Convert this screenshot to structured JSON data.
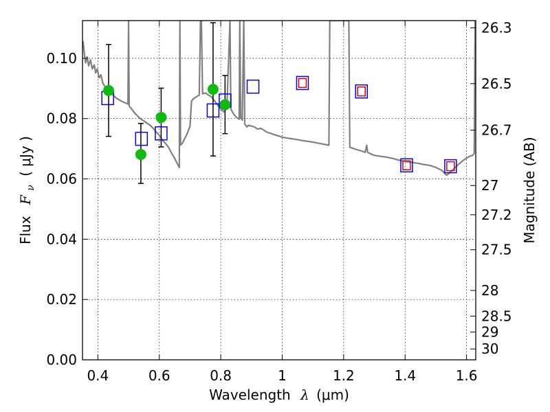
{
  "chart_data": {
    "type": "scatter",
    "xlabel": "Wavelength",
    "xlabel_symbol": "λ",
    "xlabel_unit": "(μm)",
    "ylabel": "Flux",
    "ylabel_symbol": "F",
    "ylabel_subscript": "ν",
    "ylabel_unit": "(  μJy )",
    "y2label": "Magnitude (AB)",
    "xlim": [
      0.35,
      1.63
    ],
    "ylim": [
      0.0,
      0.1125
    ],
    "grid": true,
    "xticks": [
      0.4,
      0.6,
      0.8,
      1.0,
      1.2,
      1.4,
      1.6
    ],
    "xtick_labels": [
      "0.4",
      "0.6",
      "0.8",
      "1",
      "1.2",
      "1.4",
      "1.6"
    ],
    "yticks": [
      0.0,
      0.02,
      0.04,
      0.06,
      0.08,
      0.1
    ],
    "ytick_labels": [
      "0.00",
      "0.02",
      "0.04",
      "0.06",
      "0.08",
      "0.10"
    ],
    "magnitude_ticks": [
      {
        "label": "26.3",
        "flux": 0.1101
      },
      {
        "label": "26.5",
        "flux": 0.0916
      },
      {
        "label": "26.7",
        "flux": 0.0762
      },
      {
        "label": "27",
        "flux": 0.0578
      },
      {
        "label": "27.2",
        "flux": 0.0481
      },
      {
        "label": "27.5",
        "flux": 0.0365
      },
      {
        "label": "28",
        "flux": 0.023
      },
      {
        "label": "28.5",
        "flux": 0.0145
      },
      {
        "label": "29",
        "flux": 0.0092
      },
      {
        "label": "30",
        "flux": 0.0036
      }
    ],
    "series": [
      {
        "kind": "line",
        "color": "#808080",
        "points": [
          [
            0.35,
            0.1035
          ],
          [
            0.352,
            0.1055
          ],
          [
            0.356,
            0.1015
          ],
          [
            0.36,
            0.0985
          ],
          [
            0.365,
            0.1005
          ],
          [
            0.37,
            0.0975
          ],
          [
            0.376,
            0.0995
          ],
          [
            0.382,
            0.0965
          ],
          [
            0.388,
            0.0978
          ],
          [
            0.393,
            0.0952
          ],
          [
            0.398,
            0.0965
          ],
          [
            0.404,
            0.0935
          ],
          [
            0.41,
            0.0945
          ],
          [
            0.416,
            0.0918
          ],
          [
            0.422,
            0.0908
          ],
          [
            0.43,
            0.0895
          ],
          [
            0.44,
            0.0888
          ],
          [
            0.45,
            0.0878
          ],
          [
            0.46,
            0.0868
          ],
          [
            0.47,
            0.0862
          ],
          [
            0.48,
            0.0856
          ],
          [
            0.49,
            0.0852
          ],
          [
            0.498,
            0.0848
          ],
          [
            0.5,
            0.1125
          ],
          [
            0.502,
            0.0842
          ],
          [
            0.51,
            0.0832
          ],
          [
            0.52,
            0.0818
          ],
          [
            0.53,
            0.0808
          ],
          [
            0.54,
            0.0798
          ],
          [
            0.55,
            0.0792
          ],
          [
            0.56,
            0.0785
          ],
          [
            0.57,
            0.0778
          ],
          [
            0.58,
            0.0768
          ],
          [
            0.59,
            0.0755
          ],
          [
            0.6,
            0.0745
          ],
          [
            0.61,
            0.0728
          ],
          [
            0.62,
            0.0718
          ],
          [
            0.63,
            0.0705
          ],
          [
            0.64,
            0.0685
          ],
          [
            0.65,
            0.0668
          ],
          [
            0.66,
            0.0648
          ],
          [
            0.665,
            0.0638
          ],
          [
            0.667,
            0.1125
          ],
          [
            0.669,
            0.0712
          ],
          [
            0.675,
            0.0718
          ],
          [
            0.69,
            0.0748
          ],
          [
            0.7,
            0.0775
          ],
          [
            0.705,
            0.0858
          ],
          [
            0.71,
            0.0865
          ],
          [
            0.72,
            0.0872
          ],
          [
            0.73,
            0.0878
          ],
          [
            0.734,
            0.1125
          ],
          [
            0.737,
            0.1125
          ],
          [
            0.741,
            0.0882
          ],
          [
            0.75,
            0.0885
          ],
          [
            0.76,
            0.0878
          ],
          [
            0.77,
            0.0872
          ],
          [
            0.78,
            0.0858
          ],
          [
            0.79,
            0.0845
          ],
          [
            0.8,
            0.0832
          ],
          [
            0.81,
            0.0822
          ],
          [
            0.82,
            0.0835
          ],
          [
            0.83,
            0.1125
          ],
          [
            0.833,
            0.0832
          ],
          [
            0.84,
            0.0818
          ],
          [
            0.85,
            0.0805
          ],
          [
            0.86,
            0.0798
          ],
          [
            0.862,
            0.1125
          ],
          [
            0.865,
            0.0802
          ],
          [
            0.87,
            0.0795
          ],
          [
            0.875,
            0.1125
          ],
          [
            0.878,
            0.0782
          ],
          [
            0.885,
            0.0772
          ],
          [
            0.89,
            0.0778
          ],
          [
            0.9,
            0.0775
          ],
          [
            0.91,
            0.0772
          ],
          [
            0.92,
            0.0765
          ],
          [
            0.93,
            0.0768
          ],
          [
            0.94,
            0.0762
          ],
          [
            0.95,
            0.0755
          ],
          [
            0.96,
            0.0752
          ],
          [
            0.97,
            0.0748
          ],
          [
            0.98,
            0.0745
          ],
          [
            0.99,
            0.0742
          ],
          [
            1.0,
            0.0738
          ],
          [
            1.02,
            0.0735
          ],
          [
            1.04,
            0.0732
          ],
          [
            1.06,
            0.0728
          ],
          [
            1.08,
            0.0725
          ],
          [
            1.1,
            0.0722
          ],
          [
            1.12,
            0.0718
          ],
          [
            1.14,
            0.0714
          ],
          [
            1.152,
            0.0712
          ],
          [
            1.155,
            0.1125
          ],
          [
            1.217,
            0.1125
          ],
          [
            1.22,
            0.0705
          ],
          [
            1.24,
            0.0698
          ],
          [
            1.26,
            0.0692
          ],
          [
            1.27,
            0.0688
          ],
          [
            1.275,
            0.0712
          ],
          [
            1.278,
            0.0688
          ],
          [
            1.29,
            0.0682
          ],
          [
            1.3,
            0.0678
          ],
          [
            1.32,
            0.0675
          ],
          [
            1.34,
            0.0672
          ],
          [
            1.36,
            0.0668
          ],
          [
            1.38,
            0.0662
          ],
          [
            1.4,
            0.0658
          ],
          [
            1.42,
            0.0655
          ],
          [
            1.44,
            0.0652
          ],
          [
            1.46,
            0.0648
          ],
          [
            1.48,
            0.0645
          ],
          [
            1.5,
            0.0638
          ],
          [
            1.52,
            0.0628
          ],
          [
            1.535,
            0.0612
          ],
          [
            1.55,
            0.0625
          ],
          [
            1.57,
            0.0645
          ],
          [
            1.59,
            0.0662
          ],
          [
            1.61,
            0.0675
          ],
          [
            1.62,
            0.0678
          ],
          [
            1.625,
            0.0685
          ],
          [
            1.628,
            0.1125
          ]
        ]
      },
      {
        "kind": "observed",
        "marker": "filled-circle",
        "color": "#10bb10",
        "points": [
          {
            "x": 0.435,
            "y": 0.0893,
            "err": [
              0.0741,
              0.1046
            ]
          },
          {
            "x": 0.54,
            "y": 0.0681,
            "err": [
              0.0585,
              0.0784
            ]
          },
          {
            "x": 0.606,
            "y": 0.0804,
            "err": [
              0.0706,
              0.0901
            ]
          },
          {
            "x": 0.775,
            "y": 0.0897,
            "err": [
              0.0676,
              0.1118
            ]
          },
          {
            "x": 0.814,
            "y": 0.0846,
            "err": [
              0.075,
              0.0943
            ]
          }
        ]
      },
      {
        "kind": "model-blue",
        "marker": "open-square",
        "color": "#0000ee",
        "points": [
          [
            0.432,
            0.0868
          ],
          [
            0.542,
            0.0733
          ],
          [
            0.606,
            0.0751
          ],
          [
            0.775,
            0.0827
          ],
          [
            0.814,
            0.086
          ],
          [
            0.905,
            0.0906
          ]
        ]
      },
      {
        "kind": "model-red",
        "marker": "open-square",
        "color": "#dd0000",
        "points": [
          [
            1.066,
            0.0918
          ],
          [
            1.258,
            0.089
          ],
          [
            1.405,
            0.0645
          ],
          [
            1.548,
            0.0642
          ]
        ]
      }
    ]
  }
}
